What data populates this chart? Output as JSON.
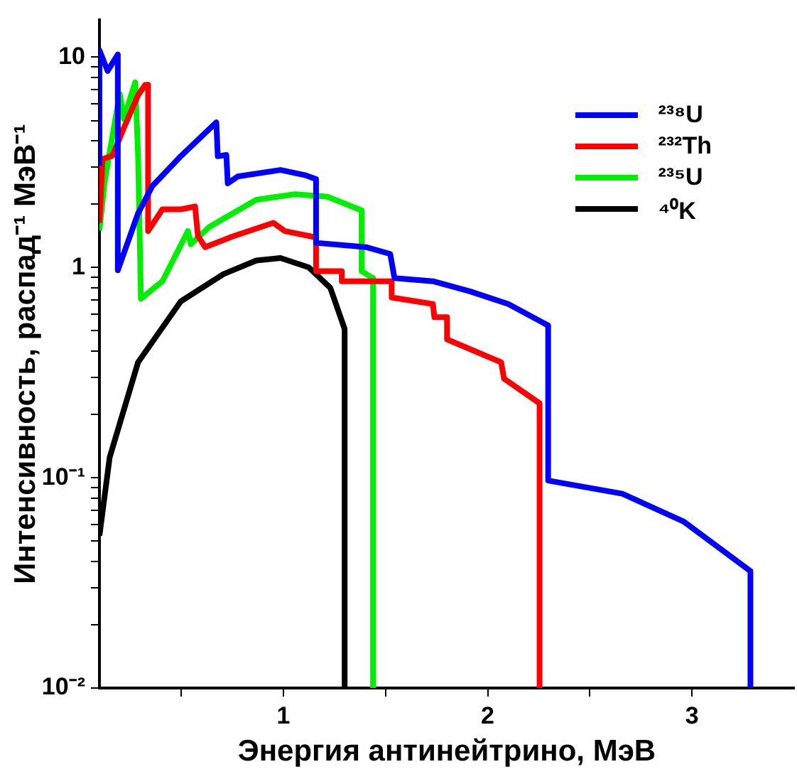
{
  "chart_data": {
    "type": "line",
    "xlabel": "Энергия антинейтрино, МэВ",
    "ylabel": "Интенсивность, распад⁻¹ МэВ⁻¹",
    "log": "y",
    "grid": false,
    "legend": "top right",
    "marker": "none",
    "line_style": "solid",
    "xlim": [
      0.1,
      3.5
    ],
    "xticks": [
      {
        "value": 0.5,
        "label": null
      },
      1,
      {
        "value": 1.5,
        "label": null
      },
      2,
      {
        "value": 2.5,
        "label": null
      },
      3
    ],
    "ylim": [
      0.01,
      15
    ],
    "yticks": [
      {
        "value": 0.01,
        "label": "10⁻²"
      },
      {
        "value": 0.02,
        "label": null
      },
      {
        "value": 0.03,
        "label": null
      },
      {
        "value": 0.04,
        "label": null
      },
      {
        "value": 0.05,
        "label": null
      },
      {
        "value": 0.06,
        "label": null
      },
      {
        "value": 0.07,
        "label": null
      },
      {
        "value": 0.08,
        "label": null
      },
      {
        "value": 0.09,
        "label": null
      },
      {
        "value": 0.1,
        "label": "10⁻¹"
      },
      {
        "value": 0.2,
        "label": null
      },
      {
        "value": 0.3,
        "label": null
      },
      {
        "value": 0.4,
        "label": null
      },
      {
        "value": 0.5,
        "label": null
      },
      {
        "value": 0.6,
        "label": null
      },
      {
        "value": 0.7,
        "label": null
      },
      {
        "value": 0.8,
        "label": null
      },
      {
        "value": 0.9,
        "label": null
      },
      1,
      {
        "value": 2,
        "label": null
      },
      {
        "value": 3,
        "label": null
      },
      {
        "value": 4,
        "label": null
      },
      {
        "value": 5,
        "label": null
      },
      {
        "value": 6,
        "label": null
      },
      {
        "value": 7,
        "label": null
      },
      {
        "value": 8,
        "label": null
      },
      {
        "value": 9,
        "label": null
      },
      10
    ],
    "series": [
      {
        "name": "²³⁸U",
        "color": "#0000ff",
        "x": [
          0.1,
          0.1,
          0.14,
          0.19,
          0.19,
          0.289,
          0.359,
          0.498,
          0.672,
          0.679,
          0.721,
          0.728,
          0.777,
          0.986,
          1.105,
          1.16,
          1.16,
          1.404,
          1.523,
          1.544,
          1.732,
          1.913,
          2.101,
          2.296,
          2.296,
          2.659,
          2.958,
          3.286,
          3.286
        ],
        "values": [
          3.05,
          10.8,
          8.6,
          10.3,
          0.97,
          1.81,
          2.44,
          3.38,
          4.9,
          3.38,
          3.43,
          2.51,
          2.71,
          2.91,
          2.75,
          2.63,
          1.31,
          1.25,
          1.16,
          0.89,
          0.86,
          0.77,
          0.67,
          0.53,
          0.097,
          0.084,
          0.062,
          0.036,
          0.01
        ]
      },
      {
        "name": "²³²Th",
        "color": "#ff0000",
        "x": [
          0.1,
          0.115,
          0.164,
          0.219,
          0.289,
          0.324,
          0.338,
          0.338,
          0.408,
          0.498,
          0.568,
          0.582,
          0.617,
          0.756,
          0.951,
          1.007,
          1.16,
          1.16,
          1.286,
          1.286,
          1.53,
          1.53,
          1.732,
          1.739,
          1.801,
          1.801,
          2.066,
          2.08,
          2.254,
          2.254
        ],
        "values": [
          1.63,
          3.28,
          3.4,
          4.6,
          6.6,
          7.4,
          7.4,
          1.49,
          1.89,
          1.89,
          1.95,
          1.41,
          1.25,
          1.41,
          1.63,
          1.49,
          1.39,
          0.96,
          0.96,
          0.86,
          0.86,
          0.72,
          0.67,
          0.58,
          0.58,
          0.455,
          0.354,
          0.296,
          0.226,
          0.01
        ]
      },
      {
        "name": "²³⁵U",
        "color": "#00ee00",
        "x": [
          0.1,
          0.125,
          0.199,
          0.219,
          0.275,
          0.289,
          0.303,
          0.408,
          0.533,
          0.547,
          0.638,
          0.868,
          1.056,
          1.216,
          1.383,
          1.383,
          1.439,
          1.439
        ],
        "values": [
          1.5,
          2.55,
          6.7,
          5.1,
          7.6,
          3.43,
          0.71,
          0.86,
          1.49,
          1.29,
          1.56,
          2.1,
          2.23,
          2.17,
          1.87,
          0.96,
          0.89,
          0.01
        ]
      },
      {
        "name": "⁴⁰K",
        "color": "#000000",
        "x": [
          0.1,
          0.15,
          0.289,
          0.498,
          0.707,
          0.868,
          0.986,
          1.125,
          1.23,
          1.3,
          1.3
        ],
        "values": [
          0.053,
          0.125,
          0.354,
          0.69,
          0.93,
          1.08,
          1.11,
          1.0,
          0.8,
          0.51,
          0.01
        ]
      }
    ]
  }
}
